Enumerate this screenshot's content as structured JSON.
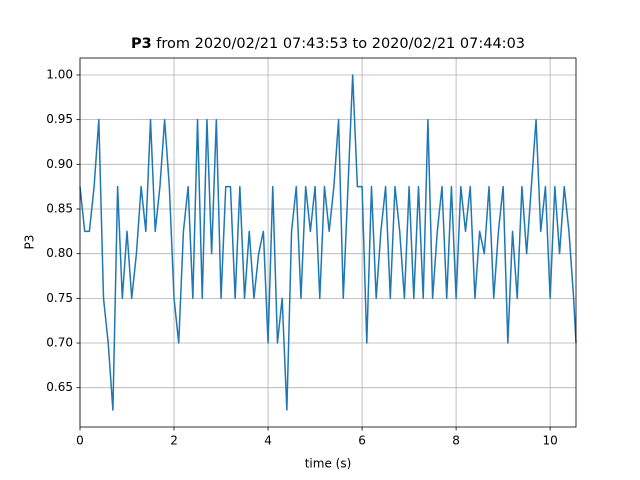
{
  "chart_data": {
    "type": "line",
    "title_name": "P3",
    "title_range": "from 2020/02/21 07:43:53 to 2020/02/21 07:44:03",
    "x_label": "time (s)",
    "y_label": "P3",
    "x": [
      0,
      0.1,
      0.2,
      0.3,
      0.4,
      0.5,
      0.6,
      0.7,
      0.8,
      0.9,
      1.0,
      1.1,
      1.2,
      1.3,
      1.4,
      1.5,
      1.6,
      1.7,
      1.8,
      1.9,
      2.0,
      2.1,
      2.2,
      2.3,
      2.4,
      2.5,
      2.6,
      2.7,
      2.8,
      2.9,
      3.0,
      3.1,
      3.2,
      3.3,
      3.4,
      3.5,
      3.6,
      3.7,
      3.8,
      3.9,
      4.0,
      4.1,
      4.2,
      4.3,
      4.4,
      4.5,
      4.6,
      4.7,
      4.8,
      4.9,
      5.0,
      5.1,
      5.2,
      5.3,
      5.4,
      5.5,
      5.6,
      5.7,
      5.8,
      5.9,
      6.0,
      6.1,
      6.2,
      6.3,
      6.4,
      6.5,
      6.6,
      6.7,
      6.8,
      6.9,
      7.0,
      7.1,
      7.2,
      7.3,
      7.4,
      7.5,
      7.6,
      7.7,
      7.8,
      7.9,
      8.0,
      8.1,
      8.2,
      8.3,
      8.4,
      8.5,
      8.6,
      8.7,
      8.8,
      8.9,
      9.0,
      9.1,
      9.2,
      9.3,
      9.4,
      9.5,
      9.6,
      9.7,
      9.8,
      9.9,
      10.0,
      10.1,
      10.2,
      10.3,
      10.4,
      10.5,
      10.55
    ],
    "series": [
      {
        "name": "P3",
        "color": "#1f77b4",
        "values": [
          0.875,
          0.825,
          0.825,
          0.875,
          0.95,
          0.75,
          0.7,
          0.625,
          0.875,
          0.75,
          0.825,
          0.75,
          0.8,
          0.875,
          0.825,
          0.95,
          0.825,
          0.875,
          0.95,
          0.875,
          0.75,
          0.7,
          0.825,
          0.875,
          0.75,
          0.95,
          0.75,
          0.95,
          0.8,
          0.95,
          0.75,
          0.875,
          0.875,
          0.75,
          0.875,
          0.75,
          0.825,
          0.75,
          0.8,
          0.825,
          0.7,
          0.875,
          0.7,
          0.75,
          0.625,
          0.825,
          0.875,
          0.75,
          0.875,
          0.825,
          0.875,
          0.75,
          0.875,
          0.825,
          0.875,
          0.95,
          0.75,
          0.875,
          1.0,
          0.875,
          0.875,
          0.7,
          0.875,
          0.75,
          0.825,
          0.875,
          0.75,
          0.875,
          0.825,
          0.75,
          0.875,
          0.75,
          0.875,
          0.75,
          0.95,
          0.75,
          0.825,
          0.875,
          0.75,
          0.875,
          0.75,
          0.875,
          0.825,
          0.875,
          0.75,
          0.825,
          0.8,
          0.875,
          0.75,
          0.825,
          0.875,
          0.7,
          0.825,
          0.75,
          0.875,
          0.8,
          0.875,
          0.95,
          0.825,
          0.875,
          0.75,
          0.875,
          0.8,
          0.875,
          0.825,
          0.75,
          0.7
        ]
      }
    ],
    "xlim": [
      0,
      10.55
    ],
    "ylim": [
      0.606,
      1.019
    ],
    "xticks": [
      0,
      2,
      4,
      6,
      8,
      10
    ],
    "yticks": [
      0.65,
      {
        "value": 0.7,
        "label": "0.70"
      },
      0.75,
      {
        "value": 0.8,
        "label": "0.80"
      },
      0.85,
      {
        "value": 0.9,
        "label": "0.90"
      },
      0.95,
      {
        "value": 1,
        "label": "1.00"
      }
    ],
    "grid": true
  }
}
